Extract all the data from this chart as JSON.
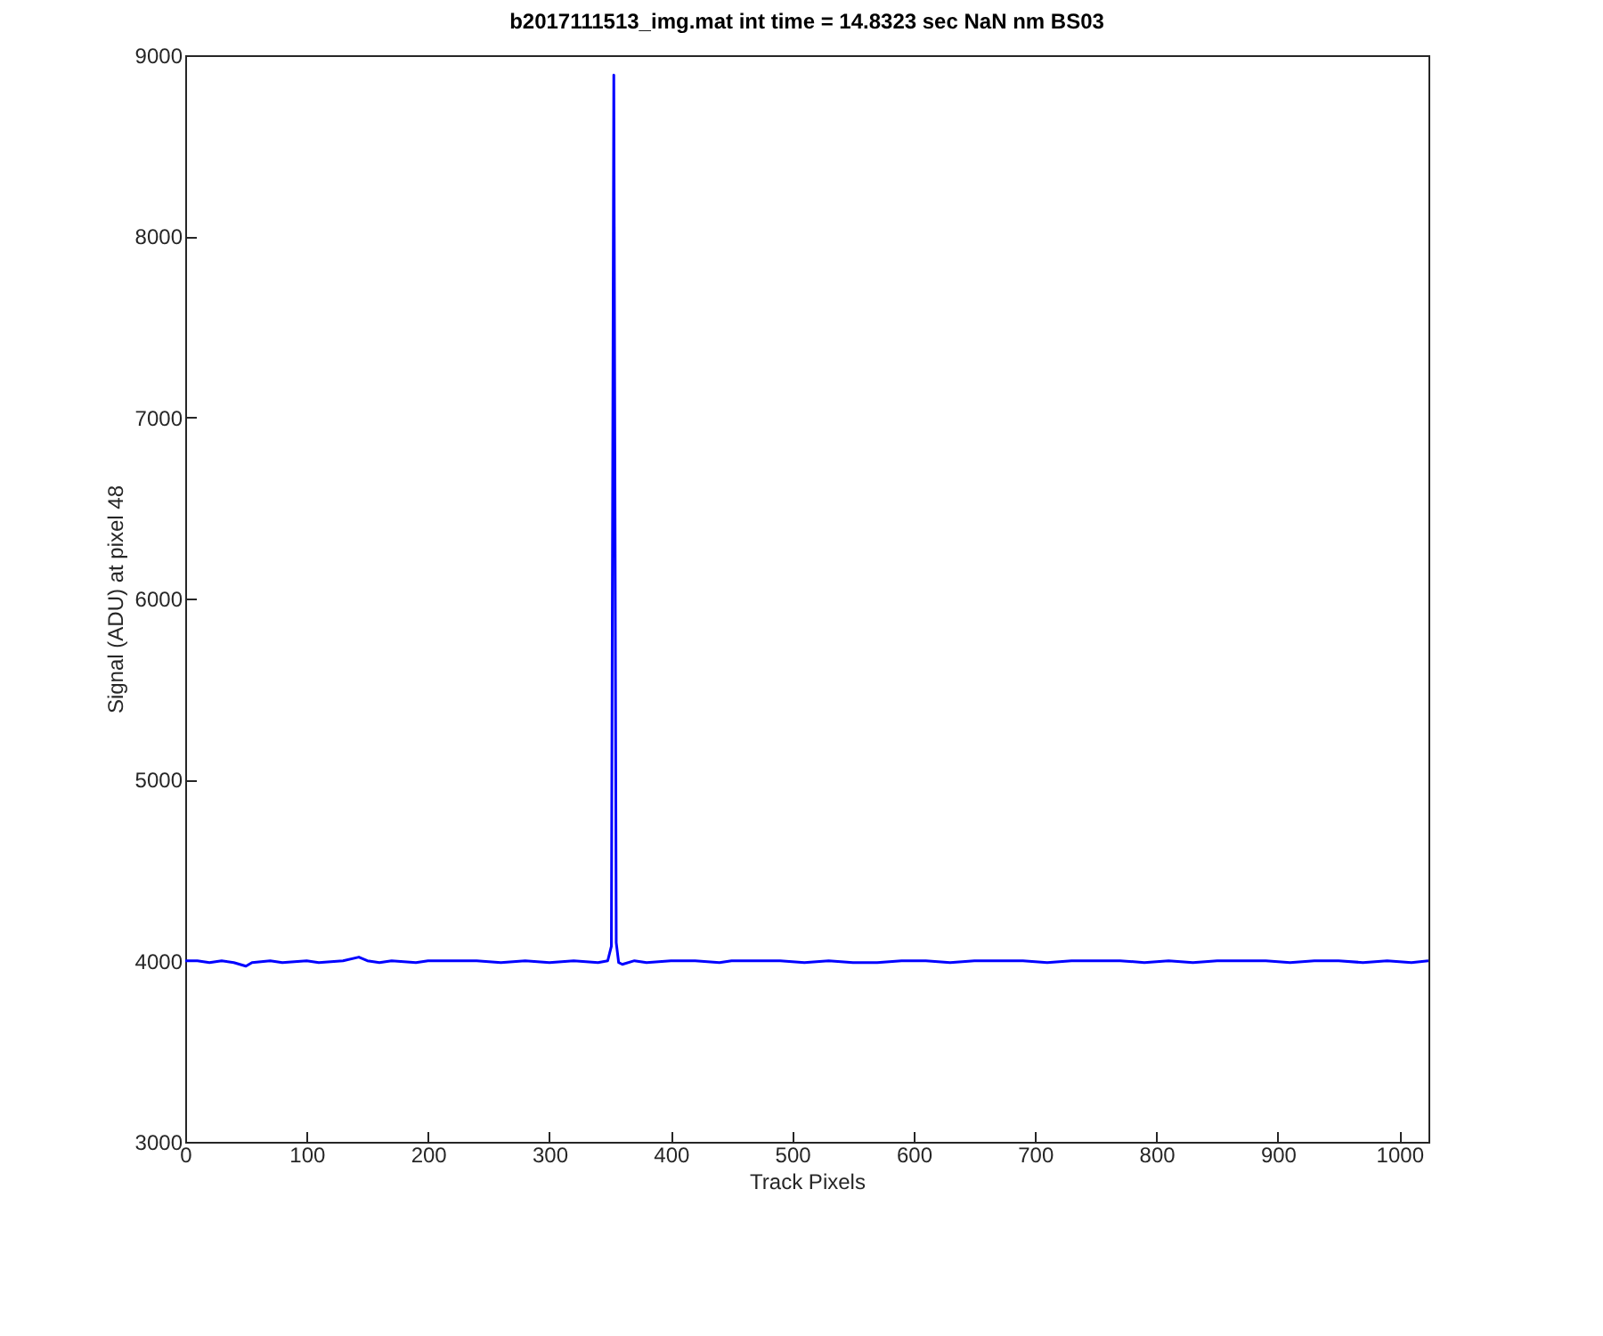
{
  "chart_data": {
    "type": "line",
    "title": "b2017111513_img.mat int time = 14.8323 sec  NaN nm BS03",
    "xlabel": "Track Pixels",
    "ylabel": "Signal (ADU) at pixel 48",
    "x": [
      0,
      10,
      20,
      30,
      40,
      50,
      55,
      70,
      80,
      100,
      110,
      130,
      143,
      150,
      160,
      170,
      190,
      200,
      220,
      240,
      260,
      280,
      300,
      320,
      340,
      348,
      351,
      353,
      355,
      357,
      360,
      370,
      380,
      400,
      420,
      440,
      450,
      470,
      490,
      510,
      530,
      550,
      570,
      590,
      610,
      630,
      650,
      670,
      690,
      710,
      730,
      750,
      770,
      790,
      810,
      830,
      850,
      870,
      890,
      910,
      930,
      950,
      970,
      990,
      1010,
      1024
    ],
    "series": [
      {
        "color": "#0000ff",
        "values": [
          4000,
          4000,
          3990,
          4000,
          3990,
          3970,
          3990,
          4000,
          3990,
          4000,
          3990,
          4000,
          4020,
          4000,
          3990,
          4000,
          3990,
          4000,
          4000,
          4000,
          3990,
          4000,
          3990,
          4000,
          3990,
          4000,
          4080,
          8890,
          4100,
          3990,
          3980,
          4000,
          3990,
          4000,
          4000,
          3990,
          4000,
          4000,
          4000,
          3990,
          4000,
          3990,
          3990,
          4000,
          4000,
          3990,
          4000,
          4000,
          4000,
          3990,
          4000,
          4000,
          4000,
          3990,
          4000,
          3990,
          4000,
          4000,
          4000,
          3990,
          4000,
          4000,
          3990,
          4000,
          3990,
          4000
        ]
      }
    ],
    "xlim": [
      0,
      1024
    ],
    "xticks": [
      0,
      100,
      200,
      300,
      400,
      500,
      600,
      700,
      800,
      900,
      1000
    ],
    "ylim": [
      3000,
      9000
    ],
    "yticks": [
      3000,
      4000,
      5000,
      6000,
      7000,
      8000,
      9000
    ],
    "grid": false,
    "marker": "none",
    "line_style": "solid"
  }
}
